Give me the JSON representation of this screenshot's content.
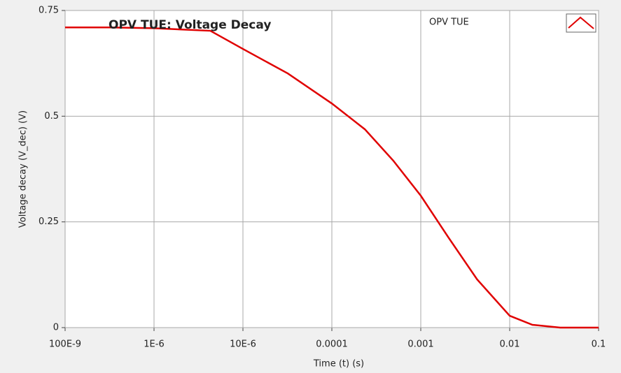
{
  "chart_data": {
    "type": "line",
    "title": "OPV TUE: Voltage Decay",
    "x_label": "Time (t) (s)",
    "y_label": "Voltage decay (V_dec) (V)",
    "x_scale": "log",
    "grid": true,
    "legend": "top-right",
    "xlim": [
      1e-07,
      0.1
    ],
    "xticks": [
      {
        "value": 1e-07,
        "label": "100E-9"
      },
      {
        "value": 1e-06,
        "label": "1E-6"
      },
      {
        "value": 1e-05,
        "label": "10E-6"
      },
      0.0001,
      0.001,
      0.01,
      0.1
    ],
    "ylim": [
      0,
      0.75
    ],
    "yticks": [
      0,
      0.25,
      0.5,
      0.75
    ],
    "x": [
      1e-07,
      3.1e-07,
      1e-06,
      4.3e-06,
      1e-05,
      3.2e-05,
      0.0001,
      0.000235,
      0.00049,
      0.001,
      0.00205,
      0.0043,
      0.01,
      0.018,
      0.037,
      0.1
    ],
    "series": [
      {
        "name": "OPV TUE",
        "color": "#e00000",
        "values": [
          0.71,
          0.71,
          0.708,
          0.702,
          0.659,
          0.601,
          0.53,
          0.469,
          0.395,
          0.312,
          0.213,
          0.114,
          0.028,
          0.0066,
          0,
          0
        ]
      }
    ]
  }
}
